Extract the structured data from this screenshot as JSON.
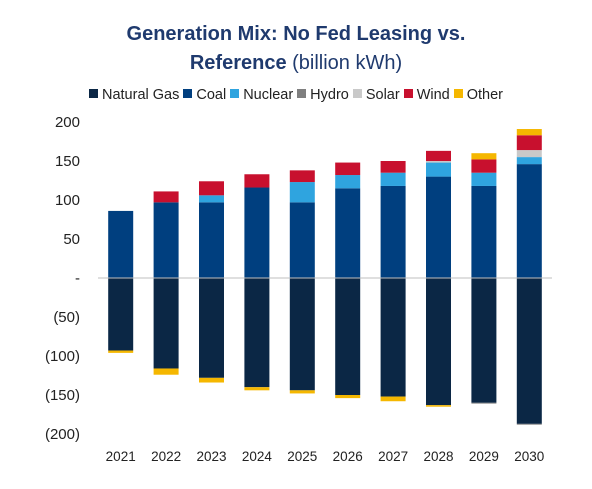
{
  "chart_data": {
    "type": "bar",
    "stacked": true,
    "title_bold": "Generation Mix: No Fed Leasing vs. Reference",
    "title_suffix": "(billion kWh)",
    "xlabel": "",
    "ylabel": "",
    "ylim": [
      -200,
      200
    ],
    "yticks": [
      200,
      150,
      100,
      50,
      0,
      -50,
      -100,
      -150,
      -200
    ],
    "ytick_labels": [
      "200",
      "150",
      "100",
      "50",
      "-",
      "(50)",
      "(100)",
      "(150)",
      "(200)"
    ],
    "grid": false,
    "legend_position": "top",
    "categories": [
      "2021",
      "2022",
      "2023",
      "2024",
      "2025",
      "2026",
      "2027",
      "2028",
      "2029",
      "2030"
    ],
    "series": [
      {
        "name": "Natural Gas",
        "color": "#0b2745",
        "values": [
          -93,
          -116,
          -128,
          -140,
          -144,
          -150,
          -152,
          -163,
          -160,
          -187
        ]
      },
      {
        "name": "Coal",
        "color": "#003f7f",
        "values": [
          86,
          97,
          97,
          116,
          97,
          115,
          118,
          130,
          118,
          146
        ]
      },
      {
        "name": "Nuclear",
        "color": "#2fa4df",
        "values": [
          0,
          0,
          9,
          0,
          26,
          17,
          17,
          18,
          17,
          9
        ]
      },
      {
        "name": "Hydro",
        "color": "#7f7f7f",
        "values": [
          0,
          0,
          0,
          0,
          0,
          0,
          0,
          0,
          -1,
          -1
        ]
      },
      {
        "name": "Solar",
        "color": "#c9c9c9",
        "values": [
          0,
          0,
          0,
          0,
          0,
          0,
          0,
          2,
          0,
          9
        ]
      },
      {
        "name": "Wind",
        "color": "#c8102e",
        "values": [
          0,
          14,
          18,
          17,
          15,
          16,
          15,
          13,
          17,
          19
        ]
      },
      {
        "name": "Other",
        "color": "#f5b700",
        "values": [
          -3,
          -8,
          -6,
          -4,
          -4,
          -4,
          -6,
          -2,
          8,
          8
        ]
      }
    ]
  }
}
